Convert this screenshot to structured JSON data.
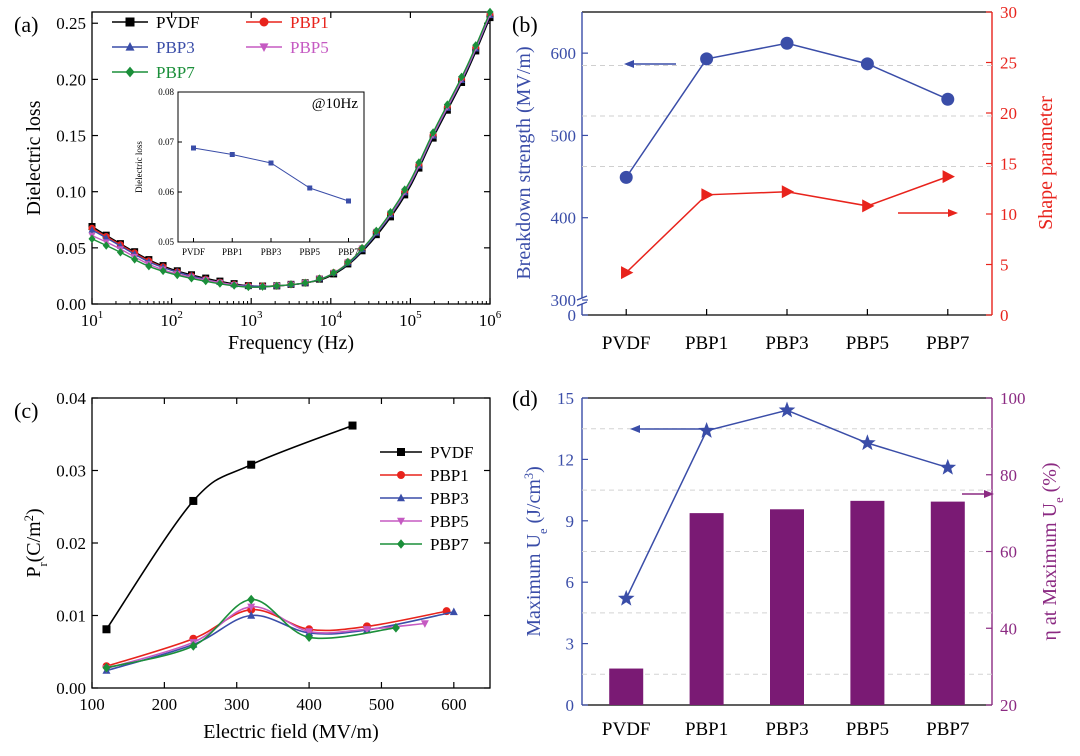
{
  "colors": {
    "PVDF": "#000000",
    "PBP1": "#e8231c",
    "PBP3": "#3a4da8",
    "PBP5": "#c55ac2",
    "PBP7": "#1b8f3a",
    "axis_blue": "#3a4da8",
    "axis_red": "#e8231c",
    "axis_purple": "#8b2a82",
    "bar_purple": "#7a1a74"
  },
  "chart_data": [
    {
      "panel": "(a)",
      "type": "line",
      "xlabel": "Frequency (Hz)",
      "ylabel": "Dielectric loss",
      "xscale": "log",
      "xlim": [
        10,
        1000000
      ],
      "ylim": [
        0,
        0.26
      ],
      "yticks": [
        "0.00",
        "0.05",
        "0.10",
        "0.15",
        "0.20",
        "0.25"
      ],
      "xticks": [
        {
          "base": "10",
          "exp": "1"
        },
        {
          "base": "10",
          "exp": "2"
        },
        {
          "base": "10",
          "exp": "3"
        },
        {
          "base": "10",
          "exp": "4"
        },
        {
          "base": "10",
          "exp": "5"
        },
        {
          "base": "10",
          "exp": "6"
        }
      ],
      "legend_position": "top-left",
      "series": [
        {
          "name": "PVDF",
          "marker": "square",
          "color": "#000000",
          "x": [
            10,
            20,
            50,
            100,
            200,
            500,
            1000,
            2000,
            5000,
            10000,
            20000,
            50000,
            100000,
            200000,
            500000,
            1000000
          ],
          "y": [
            0.069,
            0.056,
            0.04,
            0.031,
            0.025,
            0.019,
            0.016,
            0.016,
            0.019,
            0.025,
            0.04,
            0.072,
            0.105,
            0.15,
            0.205,
            0.255
          ]
        },
        {
          "name": "PBP1",
          "marker": "circle",
          "color": "#e8231c",
          "x": [
            10,
            20,
            50,
            100,
            200,
            500,
            1000,
            2000,
            5000,
            10000,
            20000,
            50000,
            100000,
            200000,
            500000,
            1000000
          ],
          "y": [
            0.0675,
            0.055,
            0.039,
            0.03,
            0.024,
            0.018,
            0.016,
            0.016,
            0.019,
            0.026,
            0.042,
            0.075,
            0.108,
            0.153,
            0.208,
            0.258
          ]
        },
        {
          "name": "PBP3",
          "marker": "triangle-up",
          "color": "#3a4da8",
          "x": [
            10,
            20,
            50,
            100,
            200,
            500,
            1000,
            2000,
            5000,
            10000,
            20000,
            50000,
            100000,
            200000,
            500000,
            1000000
          ],
          "y": [
            0.066,
            0.054,
            0.038,
            0.03,
            0.024,
            0.018,
            0.016,
            0.016,
            0.019,
            0.026,
            0.041,
            0.074,
            0.107,
            0.152,
            0.207,
            0.257
          ]
        },
        {
          "name": "PBP5",
          "marker": "triangle-down",
          "color": "#c55ac2",
          "x": [
            10,
            20,
            50,
            100,
            200,
            500,
            1000,
            2000,
            5000,
            10000,
            20000,
            50000,
            100000,
            200000,
            500000,
            1000000
          ],
          "y": [
            0.061,
            0.051,
            0.036,
            0.028,
            0.023,
            0.018,
            0.015,
            0.016,
            0.019,
            0.026,
            0.042,
            0.075,
            0.108,
            0.153,
            0.208,
            0.258
          ]
        },
        {
          "name": "PBP7",
          "marker": "diamond",
          "color": "#1b8f3a",
          "x": [
            10,
            20,
            50,
            100,
            200,
            500,
            1000,
            2000,
            5000,
            10000,
            20000,
            50000,
            100000,
            200000,
            500000,
            1000000
          ],
          "y": [
            0.058,
            0.048,
            0.034,
            0.027,
            0.022,
            0.017,
            0.015,
            0.016,
            0.019,
            0.026,
            0.042,
            0.076,
            0.11,
            0.155,
            0.21,
            0.26
          ]
        }
      ],
      "inset": {
        "annotation": "@10Hz",
        "ylabel": "Dielectric loss",
        "categories": [
          "PVDF",
          "PBP1",
          "PBP3",
          "PBP5",
          "PBP7"
        ],
        "values": [
          0.0688,
          0.0675,
          0.0658,
          0.0608,
          0.0582
        ],
        "ylim": [
          0.05,
          0.08
        ],
        "yticks": [
          "0.05",
          "0.06",
          "0.07",
          "0.08"
        ]
      }
    },
    {
      "panel": "(b)",
      "type": "line",
      "categories": [
        "PVDF",
        "PBP1",
        "PBP3",
        "PBP5",
        "PBP7"
      ],
      "ylabel_left": "Breakdown strength (MV/m)",
      "ylabel_right": "Shape parameter",
      "yticks_left": [
        "0",
        "300",
        "400",
        "500",
        "600"
      ],
      "yticks_right": [
        "0",
        "5",
        "10",
        "15",
        "20",
        "25",
        "30"
      ],
      "ylim_right": [
        0,
        30
      ],
      "series": [
        {
          "name": "Breakdown strength",
          "axis": "left",
          "marker": "circle",
          "color": "#3a4da8",
          "values": [
            449,
            593,
            612,
            587,
            544
          ]
        },
        {
          "name": "Shape parameter",
          "axis": "right",
          "marker": "triangle-right",
          "color": "#e8231c",
          "values": [
            4.2,
            11.9,
            12.2,
            10.8,
            13.7
          ]
        }
      ]
    },
    {
      "panel": "(c)",
      "type": "line",
      "xlabel": "Electric field (MV/m)",
      "ylabel": {
        "main": "P",
        "sub": "r",
        "unit_a": "(C/m",
        "sup": "2",
        "unit_b": ")"
      },
      "xlim": [
        100,
        650
      ],
      "ylim": [
        0,
        0.04
      ],
      "xticks": [
        "100",
        "200",
        "300",
        "400",
        "500",
        "600"
      ],
      "yticks": [
        "0.00",
        "0.01",
        "0.02",
        "0.03",
        "0.04"
      ],
      "legend_position": "right",
      "series": [
        {
          "name": "PVDF",
          "marker": "square",
          "color": "#000000",
          "x": [
            120,
            240,
            320,
            460
          ],
          "y": [
            0.0081,
            0.0258,
            0.0308,
            0.0362
          ]
        },
        {
          "name": "PBP1",
          "marker": "circle",
          "color": "#e8231c",
          "x": [
            120,
            240,
            320,
            400,
            480,
            590
          ],
          "y": [
            0.003,
            0.0068,
            0.0108,
            0.0081,
            0.0085,
            0.0106
          ]
        },
        {
          "name": "PBP3",
          "marker": "triangle-up",
          "color": "#3a4da8",
          "x": [
            120,
            240,
            320,
            400,
            480,
            600
          ],
          "y": [
            0.0024,
            0.006,
            0.01,
            0.0076,
            0.008,
            0.0105
          ]
        },
        {
          "name": "PBP5",
          "marker": "triangle-down",
          "color": "#c55ac2",
          "x": [
            120,
            240,
            320,
            400,
            480,
            560
          ],
          "y": [
            0.0027,
            0.0063,
            0.0112,
            0.0078,
            0.0081,
            0.0089
          ]
        },
        {
          "name": "PBP7",
          "marker": "diamond",
          "color": "#1b8f3a",
          "x": [
            120,
            240,
            320,
            400,
            520
          ],
          "y": [
            0.0028,
            0.0058,
            0.0122,
            0.007,
            0.0083
          ]
        }
      ]
    },
    {
      "panel": "(d)",
      "type": "bar",
      "categories": [
        "PVDF",
        "PBP1",
        "PBP3",
        "PBP5",
        "PBP7"
      ],
      "ylabel_left": {
        "main": "Maximum U",
        "sub": "e",
        "unit_a": " (J/cm",
        "sup": "3",
        "unit_b": ")"
      },
      "ylabel_right": {
        "main": "η at Maximum U",
        "sub": "e",
        "unit_a": " (%)",
        "sup": "",
        "unit_b": ""
      },
      "ylim_left": [
        0,
        15
      ],
      "ylim_right": [
        20,
        100
      ],
      "yticks_left": [
        "0",
        "3",
        "6",
        "9",
        "12",
        "15"
      ],
      "yticks_right": [
        "20",
        "40",
        "60",
        "80",
        "100"
      ],
      "series": [
        {
          "name": "Maximum Ue",
          "axis": "left",
          "kind": "line",
          "marker": "star",
          "color": "#3a4da8",
          "values": [
            5.2,
            13.4,
            14.4,
            12.8,
            11.6
          ]
        },
        {
          "name": "η at Maximum Ue",
          "axis": "right",
          "kind": "bar",
          "color": "#7a1a74",
          "values": [
            29.5,
            70.0,
            71.0,
            73.2,
            73.0
          ]
        }
      ]
    }
  ]
}
